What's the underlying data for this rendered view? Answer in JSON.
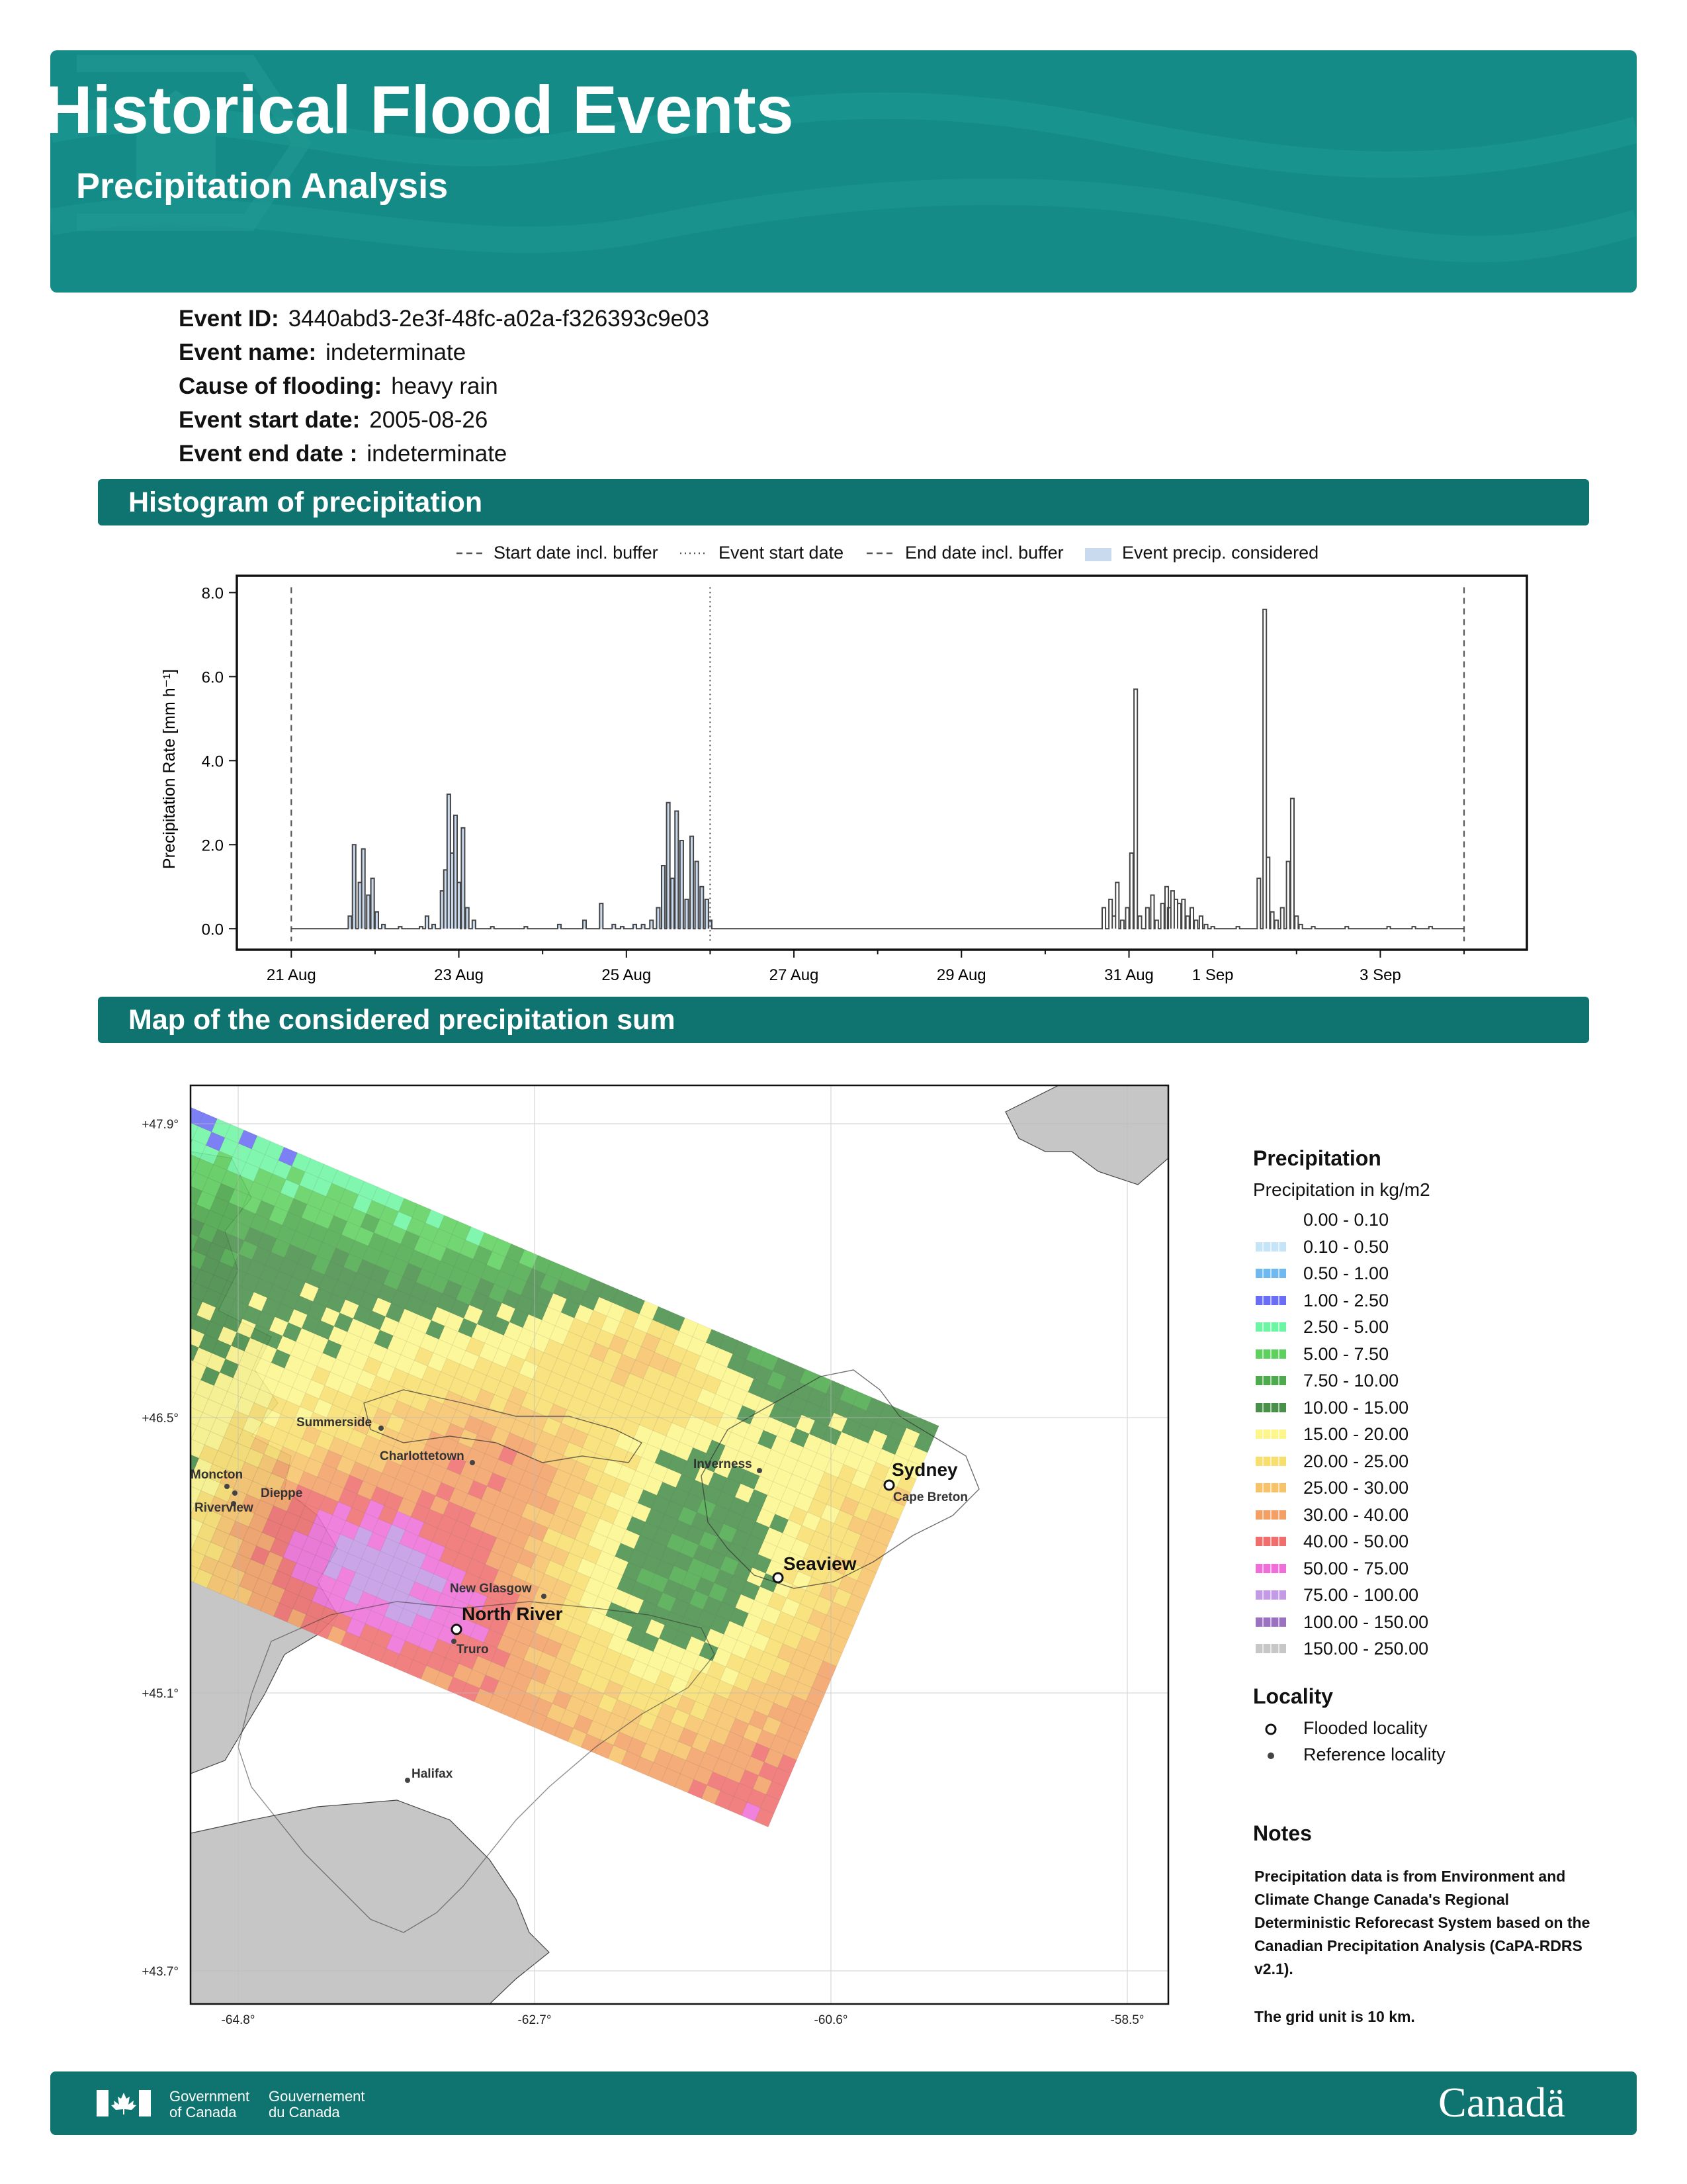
{
  "header": {
    "title": "Historical Flood Events",
    "subtitle": "Precipitation Analysis"
  },
  "event": [
    {
      "label": "Event ID:",
      "value": "3440abd3-2e3f-48fc-a02a-f326393c9e03"
    },
    {
      "label": "Event name:",
      "value": "indeterminate"
    },
    {
      "label": "Cause of flooding:",
      "value": "heavy rain"
    },
    {
      "label": "Event start date:",
      "value": "2005-08-26"
    },
    {
      "label": "Event end date :",
      "value": "indeterminate"
    }
  ],
  "sections": {
    "histogram": "Histogram of precipitation",
    "map": "Map of the considered precipitation sum"
  },
  "chart_data": {
    "type": "histogram-step",
    "legend": [
      {
        "name": "Start date incl. buffer",
        "style": "dashed"
      },
      {
        "name": "Event start date",
        "style": "dotted"
      },
      {
        "name": "End date incl. buffer",
        "style": "dashed"
      },
      {
        "name": "Event precip. considered",
        "style": "fill",
        "color": "#c9d9ee"
      }
    ],
    "legend_position": "top",
    "ylabel": "Precipitation Rate [mm h⁻¹]",
    "ylim": [
      -0.5,
      8.4
    ],
    "yticks": [
      0,
      2,
      4,
      6,
      8
    ],
    "ytick_labels": [
      "0.0",
      "2.0",
      "4.0",
      "6.0",
      "8.0"
    ],
    "xlim": [
      20.35,
      35.75
    ],
    "xticks": [
      21,
      23,
      25,
      27,
      29,
      31,
      32,
      34
    ],
    "xtick_labels": [
      "21 Aug",
      "23 Aug",
      "25 Aug",
      "27 Aug",
      "29 Aug",
      "31 Aug",
      "1 Sep",
      "3 Sep"
    ],
    "x_unit_note_days_since": "2005-08-01",
    "vlines": {
      "start_buffer": 21.0,
      "event_start": 26.0,
      "end_buffer": 35.0
    },
    "considered_range": [
      21.0,
      26.0
    ],
    "peaks": [
      [
        21.7,
        0.3
      ],
      [
        21.75,
        2.0
      ],
      [
        21.82,
        1.1
      ],
      [
        21.86,
        1.9
      ],
      [
        21.92,
        0.8
      ],
      [
        21.97,
        1.2
      ],
      [
        22.02,
        0.4
      ],
      [
        22.1,
        0.1
      ],
      [
        22.3,
        0.05
      ],
      [
        22.55,
        0.05
      ],
      [
        22.62,
        0.3
      ],
      [
        22.7,
        0.1
      ],
      [
        22.8,
        0.9
      ],
      [
        22.84,
        1.4
      ],
      [
        22.88,
        3.2
      ],
      [
        22.92,
        1.8
      ],
      [
        22.96,
        2.7
      ],
      [
        23.0,
        1.1
      ],
      [
        23.05,
        2.4
      ],
      [
        23.1,
        0.5
      ],
      [
        23.18,
        0.2
      ],
      [
        23.4,
        0.05
      ],
      [
        23.8,
        0.05
      ],
      [
        24.2,
        0.1
      ],
      [
        24.5,
        0.2
      ],
      [
        24.7,
        0.6
      ],
      [
        24.85,
        0.1
      ],
      [
        24.95,
        0.05
      ],
      [
        25.1,
        0.1
      ],
      [
        25.2,
        0.1
      ],
      [
        25.3,
        0.2
      ],
      [
        25.38,
        0.5
      ],
      [
        25.44,
        1.5
      ],
      [
        25.5,
        3.0
      ],
      [
        25.55,
        1.2
      ],
      [
        25.6,
        2.8
      ],
      [
        25.66,
        2.1
      ],
      [
        25.72,
        0.7
      ],
      [
        25.78,
        2.2
      ],
      [
        25.84,
        1.6
      ],
      [
        25.9,
        1.0
      ],
      [
        25.96,
        0.7
      ],
      [
        26.0,
        0.2
      ],
      [
        30.7,
        0.5
      ],
      [
        30.78,
        0.7
      ],
      [
        30.82,
        0.3
      ],
      [
        30.86,
        1.1
      ],
      [
        30.92,
        0.2
      ],
      [
        30.98,
        0.5
      ],
      [
        31.03,
        1.8
      ],
      [
        31.08,
        5.7
      ],
      [
        31.13,
        0.3
      ],
      [
        31.22,
        0.5
      ],
      [
        31.28,
        0.8
      ],
      [
        31.33,
        0.2
      ],
      [
        31.4,
        0.6
      ],
      [
        31.45,
        1.0
      ],
      [
        31.48,
        0.5
      ],
      [
        31.52,
        0.9
      ],
      [
        31.56,
        0.7
      ],
      [
        31.6,
        0.6
      ],
      [
        31.65,
        0.7
      ],
      [
        31.7,
        0.3
      ],
      [
        31.75,
        0.5
      ],
      [
        31.8,
        0.2
      ],
      [
        31.86,
        0.3
      ],
      [
        31.92,
        0.1
      ],
      [
        32.0,
        0.05
      ],
      [
        32.3,
        0.05
      ],
      [
        32.55,
        1.2
      ],
      [
        32.62,
        7.6
      ],
      [
        32.66,
        1.7
      ],
      [
        32.71,
        0.4
      ],
      [
        32.76,
        0.2
      ],
      [
        32.83,
        0.5
      ],
      [
        32.9,
        1.6
      ],
      [
        32.95,
        3.1
      ],
      [
        33.0,
        0.3
      ],
      [
        33.05,
        0.1
      ],
      [
        33.2,
        0.05
      ],
      [
        33.6,
        0.05
      ],
      [
        34.1,
        0.05
      ],
      [
        34.4,
        0.05
      ],
      [
        34.6,
        0.05
      ]
    ]
  },
  "map": {
    "lat_labels": [
      "+47.9°",
      "+46.5°",
      "+45.1°",
      "+43.7°"
    ],
    "lon_labels": [
      "-64.8°",
      "-62.7°",
      "-60.6°",
      "-58.5°"
    ],
    "localities": [
      {
        "name": "Sydney",
        "type": "flooded"
      },
      {
        "name": "Seaview",
        "type": "flooded"
      },
      {
        "name": "North River",
        "type": "flooded"
      },
      {
        "name": "Summerside",
        "type": "reference"
      },
      {
        "name": "Charlottetown",
        "type": "reference"
      },
      {
        "name": "Moncton",
        "type": "reference"
      },
      {
        "name": "Dieppe",
        "type": "reference"
      },
      {
        "name": "Riverview",
        "type": "reference"
      },
      {
        "name": "Inverness",
        "type": "reference"
      },
      {
        "name": "Cape Breton",
        "type": "reference"
      },
      {
        "name": "New Glasgow",
        "type": "reference"
      },
      {
        "name": "Truro",
        "type": "reference"
      },
      {
        "name": "Halifax",
        "type": "reference"
      }
    ],
    "legend": {
      "title": "Precipitation",
      "subtitle": "Precipitation in kg/m2",
      "classes": [
        {
          "label": "0.00 - 0.10",
          "color": "#ffffff"
        },
        {
          "label": "0.10 - 0.50",
          "color": "#c6e4f7"
        },
        {
          "label": "0.50 - 1.00",
          "color": "#6fb9f0"
        },
        {
          "label": "1.00 - 2.50",
          "color": "#6a6ef2"
        },
        {
          "label": "2.50 - 5.00",
          "color": "#6ef5a3"
        },
        {
          "label": "5.00 - 7.50",
          "color": "#5fd05f"
        },
        {
          "label": "7.50 - 10.00",
          "color": "#4dab4d"
        },
        {
          "label": "10.00 - 15.00",
          "color": "#4a8f4a"
        },
        {
          "label": "15.00 - 20.00",
          "color": "#fdf68d"
        },
        {
          "label": "20.00 - 25.00",
          "color": "#f8de6e"
        },
        {
          "label": "25.00 - 30.00",
          "color": "#f6c36a"
        },
        {
          "label": "30.00 - 40.00",
          "color": "#f2a066"
        },
        {
          "label": "40.00 - 50.00",
          "color": "#ef6f6f"
        },
        {
          "label": "50.00 - 75.00",
          "color": "#ee6fd8"
        },
        {
          "label": "75.00 - 100.00",
          "color": "#c39ae6"
        },
        {
          "label": "100.00 - 150.00",
          "color": "#9b72c0"
        },
        {
          "label": "150.00 - 250.00",
          "color": "#c7c7c7"
        }
      ],
      "locality_title": "Locality",
      "flooded_label": "Flooded locality",
      "reference_label": "Reference locality"
    }
  },
  "notes": {
    "title": "Notes",
    "text": "Precipitation data is from Environment and Climate Change Canada's Regional Deterministic Reforecast System based on the Canadian Precipitation Analysis (CaPA-RDRS v2.1).",
    "grid": "The grid unit is 10 km."
  },
  "footer": {
    "gov_en_1": "Government",
    "gov_en_2": "of Canada",
    "gov_fr_1": "Gouvernement",
    "gov_fr_2": "du Canada",
    "wordmark": "Canadä"
  }
}
